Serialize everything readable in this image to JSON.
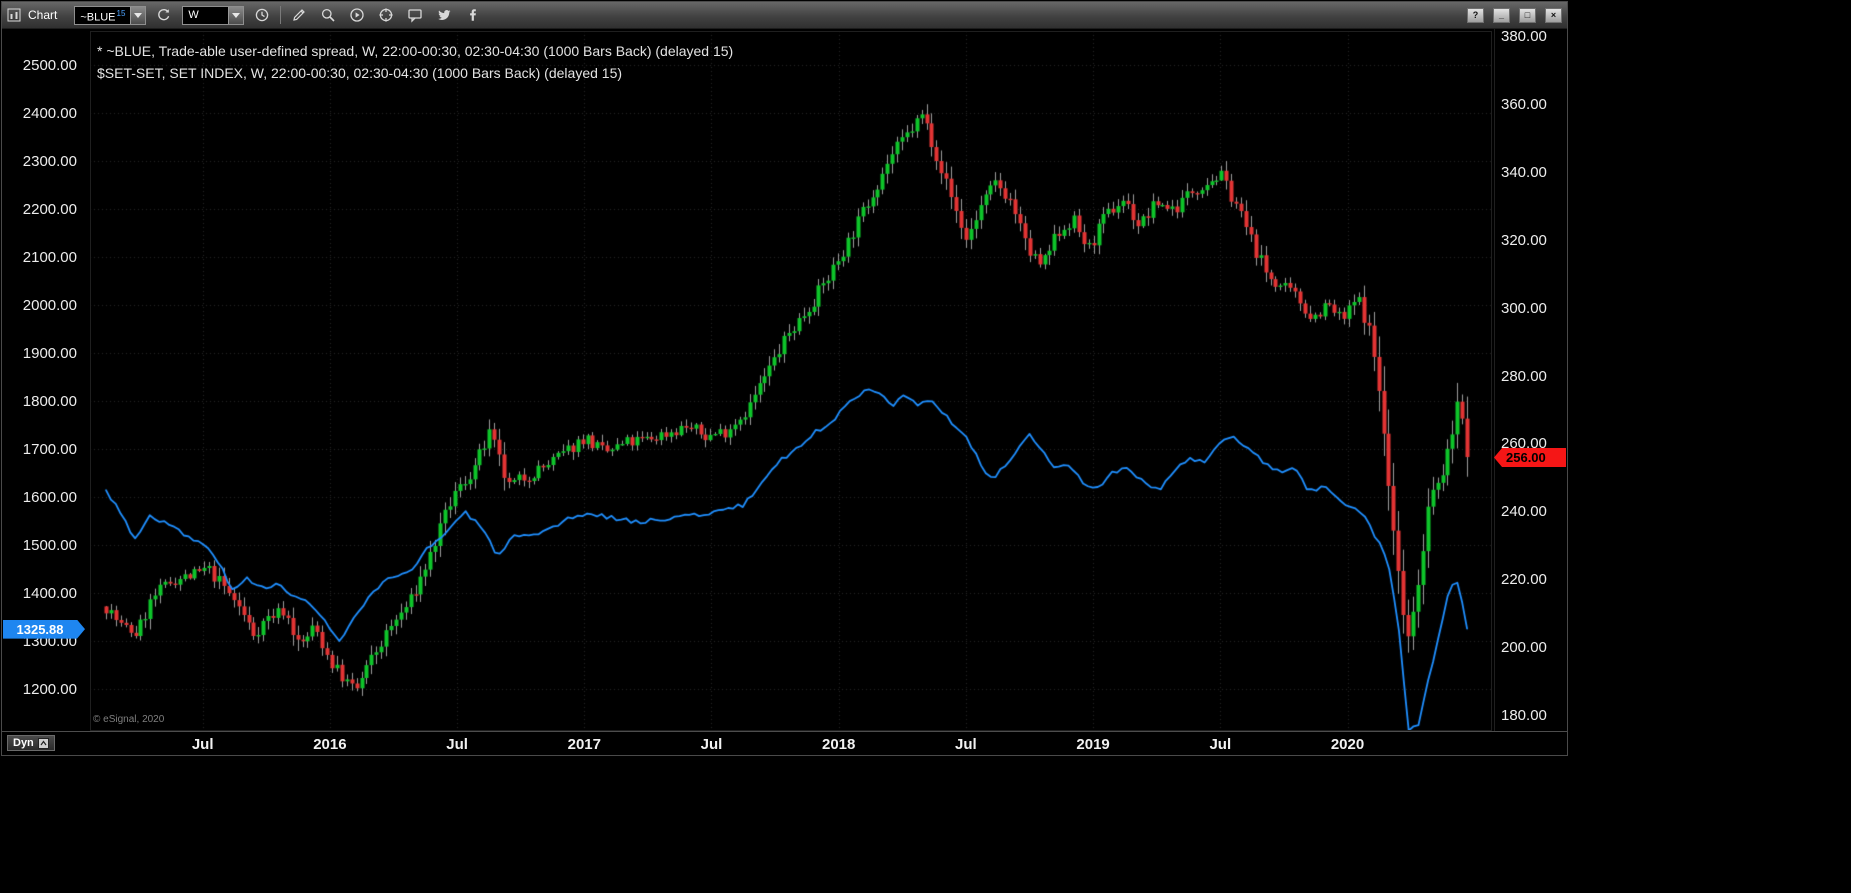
{
  "window": {
    "title": "Chart",
    "controls": {
      "help": "?",
      "minimize": "_",
      "maximize": "□",
      "close": "×"
    }
  },
  "toolbar": {
    "symbol": "~BLUE",
    "symbol_badge": "15",
    "interval": "W",
    "icons": [
      "chart",
      "symbol-dropdown",
      "refresh",
      "interval-dropdown",
      "clock",
      "pencil",
      "zoom",
      "play-circle",
      "target-circle",
      "chat-bubble",
      "twitter",
      "facebook"
    ]
  },
  "legend": {
    "line1": "* ~BLUE, Trade-able user-defined spread, W, 22:00-00:30, 02:30-04:30 (1000 Bars Back) (delayed 15)",
    "line2": "$SET-SET, SET INDEX, W, 22:00-00:30, 02:30-04:30 (1000 Bars Back) (delayed 15)"
  },
  "flags": {
    "left": {
      "label": "1325.88",
      "value": 1325.88,
      "color": "#1e86f0"
    },
    "right": {
      "label": "256.00",
      "value": 256.0,
      "color": "#f51616"
    }
  },
  "footer": {
    "tab": "Dyn",
    "copyright": "© eSignal, 2020"
  },
  "chart_data": {
    "type": "mixed",
    "x_domain": [
      2015.057,
      2020.568
    ],
    "x_ticks": [
      {
        "label": "Jul",
        "t": 2015.5
      },
      {
        "label": "2016",
        "t": 2016.0
      },
      {
        "label": "Jul",
        "t": 2016.5
      },
      {
        "label": "2017",
        "t": 2017.0
      },
      {
        "label": "Jul",
        "t": 2017.5
      },
      {
        "label": "2018",
        "t": 2018.0
      },
      {
        "label": "Jul",
        "t": 2018.5
      },
      {
        "label": "2019",
        "t": 2019.0
      },
      {
        "label": "Jul",
        "t": 2019.5
      },
      {
        "label": "2020",
        "t": 2020.0
      }
    ],
    "left_axis": {
      "domain_bottom_top": [
        1112.5,
        2570.8
      ],
      "ticks": [
        "2500.00",
        "2400.00",
        "2300.00",
        "2200.00",
        "2100.00",
        "2000.00",
        "1900.00",
        "1800.00",
        "1700.00",
        "1600.00",
        "1500.00",
        "1400.00",
        "1300.00",
        "1200.00"
      ]
    },
    "right_axis": {
      "domain_bottom_top": [
        175.3,
        381.5
      ],
      "ticks": [
        "380.00",
        "360.00",
        "340.00",
        "320.00",
        "300.00",
        "280.00",
        "260.00",
        "240.00",
        "220.00",
        "200.00",
        "180.00"
      ]
    },
    "grid": {
      "color": "#262626",
      "style": "dotted"
    },
    "series": [
      {
        "name": "~BLUE Trade-able user-defined spread",
        "type": "candlestick",
        "axis": "right",
        "bars": 278,
        "up_color": "#0ec42a",
        "down_color": "#e23434",
        "wick_color": "#9c9c9c",
        "last_close": 256.0,
        "keyframes_close": [
          [
            2015.12,
            212
          ],
          [
            2015.18,
            206
          ],
          [
            2015.24,
            204
          ],
          [
            2015.3,
            214
          ],
          [
            2015.38,
            220
          ],
          [
            2015.46,
            221
          ],
          [
            2015.52,
            223
          ],
          [
            2015.58,
            218
          ],
          [
            2015.64,
            212
          ],
          [
            2015.7,
            204
          ],
          [
            2015.76,
            209
          ],
          [
            2015.82,
            211
          ],
          [
            2015.88,
            200
          ],
          [
            2015.94,
            206
          ],
          [
            2016.0,
            196
          ],
          [
            2016.06,
            190
          ],
          [
            2016.1,
            187
          ],
          [
            2016.16,
            196
          ],
          [
            2016.24,
            206
          ],
          [
            2016.32,
            214
          ],
          [
            2016.4,
            228
          ],
          [
            2016.48,
            244
          ],
          [
            2016.56,
            252
          ],
          [
            2016.63,
            263
          ],
          [
            2016.7,
            247
          ],
          [
            2016.76,
            250
          ],
          [
            2016.84,
            253
          ],
          [
            2016.92,
            257
          ],
          [
            2017.0,
            262
          ],
          [
            2017.08,
            257
          ],
          [
            2017.16,
            260
          ],
          [
            2017.24,
            261
          ],
          [
            2017.32,
            263
          ],
          [
            2017.4,
            265
          ],
          [
            2017.48,
            262
          ],
          [
            2017.56,
            264
          ],
          [
            2017.64,
            270
          ],
          [
            2017.72,
            281
          ],
          [
            2017.8,
            292
          ],
          [
            2017.88,
            300
          ],
          [
            2017.96,
            309
          ],
          [
            2018.04,
            320
          ],
          [
            2018.12,
            332
          ],
          [
            2018.2,
            344
          ],
          [
            2018.28,
            352
          ],
          [
            2018.33,
            357
          ],
          [
            2018.38,
            346
          ],
          [
            2018.44,
            333
          ],
          [
            2018.5,
            320
          ],
          [
            2018.56,
            330
          ],
          [
            2018.62,
            337
          ],
          [
            2018.68,
            331
          ],
          [
            2018.74,
            317
          ],
          [
            2018.8,
            312
          ],
          [
            2018.86,
            322
          ],
          [
            2018.92,
            326
          ],
          [
            2018.98,
            317
          ],
          [
            2019.05,
            327
          ],
          [
            2019.12,
            332
          ],
          [
            2019.18,
            324
          ],
          [
            2019.25,
            331
          ],
          [
            2019.32,
            329
          ],
          [
            2019.38,
            334
          ],
          [
            2019.44,
            337
          ],
          [
            2019.5,
            339
          ],
          [
            2019.56,
            331
          ],
          [
            2019.62,
            320
          ],
          [
            2019.68,
            310
          ],
          [
            2019.74,
            306
          ],
          [
            2019.8,
            303
          ],
          [
            2019.86,
            297
          ],
          [
            2019.92,
            301
          ],
          [
            2019.98,
            296
          ],
          [
            2020.04,
            303
          ],
          [
            2020.09,
            292
          ],
          [
            2020.13,
            272
          ],
          [
            2020.17,
            240
          ],
          [
            2020.21,
            215
          ],
          [
            2020.24,
            203
          ],
          [
            2020.28,
            221
          ],
          [
            2020.32,
            243
          ],
          [
            2020.36,
            249
          ],
          [
            2020.4,
            258
          ],
          [
            2020.44,
            276
          ],
          [
            2020.47,
            256
          ]
        ]
      },
      {
        "name": "$SET-SET SET INDEX",
        "type": "line",
        "axis": "left",
        "color": "#1f8fff",
        "points": 280,
        "last_value": 1325.88,
        "keyframes": [
          [
            2015.12,
            1612
          ],
          [
            2015.17,
            1578
          ],
          [
            2015.23,
            1510
          ],
          [
            2015.29,
            1562
          ],
          [
            2015.36,
            1545
          ],
          [
            2015.43,
            1520
          ],
          [
            2015.5,
            1502
          ],
          [
            2015.56,
            1468
          ],
          [
            2015.62,
            1400
          ],
          [
            2015.67,
            1432
          ],
          [
            2015.73,
            1412
          ],
          [
            2015.79,
            1420
          ],
          [
            2015.85,
            1392
          ],
          [
            2015.92,
            1382
          ],
          [
            2015.98,
            1340
          ],
          [
            2016.04,
            1298
          ],
          [
            2016.09,
            1342
          ],
          [
            2016.16,
            1396
          ],
          [
            2016.23,
            1428
          ],
          [
            2016.3,
            1438
          ],
          [
            2016.38,
            1490
          ],
          [
            2016.46,
            1528
          ],
          [
            2016.53,
            1570
          ],
          [
            2016.6,
            1532
          ],
          [
            2016.66,
            1478
          ],
          [
            2016.72,
            1518
          ],
          [
            2016.79,
            1515
          ],
          [
            2016.86,
            1530
          ],
          [
            2016.93,
            1552
          ],
          [
            2017.0,
            1565
          ],
          [
            2017.08,
            1560
          ],
          [
            2017.16,
            1552
          ],
          [
            2017.24,
            1548
          ],
          [
            2017.32,
            1556
          ],
          [
            2017.4,
            1560
          ],
          [
            2017.48,
            1566
          ],
          [
            2017.56,
            1574
          ],
          [
            2017.63,
            1584
          ],
          [
            2017.7,
            1632
          ],
          [
            2017.77,
            1678
          ],
          [
            2017.84,
            1702
          ],
          [
            2017.91,
            1735
          ],
          [
            2017.98,
            1762
          ],
          [
            2018.05,
            1800
          ],
          [
            2018.11,
            1828
          ],
          [
            2018.16,
            1820
          ],
          [
            2018.21,
            1792
          ],
          [
            2018.26,
            1815
          ],
          [
            2018.31,
            1786
          ],
          [
            2018.36,
            1806
          ],
          [
            2018.42,
            1770
          ],
          [
            2018.48,
            1738
          ],
          [
            2018.54,
            1690
          ],
          [
            2018.59,
            1636
          ],
          [
            2018.64,
            1655
          ],
          [
            2018.7,
            1700
          ],
          [
            2018.75,
            1728
          ],
          [
            2018.8,
            1695
          ],
          [
            2018.85,
            1655
          ],
          [
            2018.9,
            1670
          ],
          [
            2018.96,
            1628
          ],
          [
            2019.02,
            1620
          ],
          [
            2019.08,
            1652
          ],
          [
            2019.14,
            1660
          ],
          [
            2019.2,
            1628
          ],
          [
            2019.26,
            1612
          ],
          [
            2019.32,
            1656
          ],
          [
            2019.38,
            1680
          ],
          [
            2019.44,
            1672
          ],
          [
            2019.5,
            1710
          ],
          [
            2019.55,
            1730
          ],
          [
            2019.61,
            1700
          ],
          [
            2019.67,
            1672
          ],
          [
            2019.73,
            1652
          ],
          [
            2019.79,
            1660
          ],
          [
            2019.85,
            1612
          ],
          [
            2019.91,
            1620
          ],
          [
            2019.96,
            1596
          ],
          [
            2020.02,
            1580
          ],
          [
            2020.07,
            1558
          ],
          [
            2020.12,
            1508
          ],
          [
            2020.16,
            1462
          ],
          [
            2020.2,
            1330
          ],
          [
            2020.24,
            1108
          ],
          [
            2020.28,
            1130
          ],
          [
            2020.32,
            1225
          ],
          [
            2020.36,
            1312
          ],
          [
            2020.4,
            1405
          ],
          [
            2020.43,
            1428
          ],
          [
            2020.45,
            1382
          ],
          [
            2020.47,
            1325.88
          ]
        ]
      }
    ]
  }
}
